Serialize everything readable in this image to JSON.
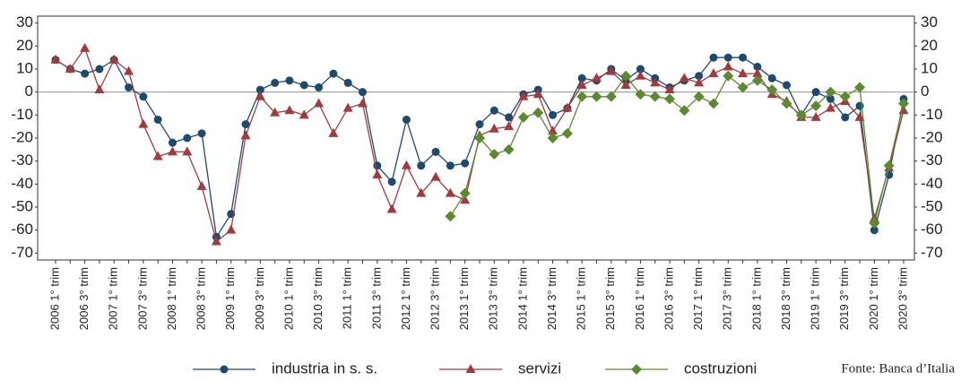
{
  "chart_data": {
    "type": "line",
    "categories": [
      "2006 1° trim",
      null,
      "2006 3° trim",
      null,
      "2007 1° trim",
      null,
      "2007 3° trim",
      null,
      "2008 1° trim",
      null,
      "2008 3° trim",
      null,
      "2009 1° trim",
      null,
      "2009 3° trim",
      null,
      "2010 1° trim",
      null,
      "2010 3° trim",
      null,
      "2011 1° trim",
      null,
      "2011 3° trim",
      null,
      "2012 1° trim",
      null,
      "2012 3° trim",
      null,
      "2013 1° trim",
      null,
      "2013 3° trim",
      null,
      "2014 1° trim",
      null,
      "2014 3° trim",
      null,
      "2015 1° trim",
      null,
      "2015 3° trim",
      null,
      "2016 1° trim",
      null,
      "2016 3° trim",
      null,
      "2017 1° trim",
      null,
      "2017 3° trim",
      null,
      "2018 1° trim",
      null,
      "2018 3° trim",
      null,
      "2019 1° trim",
      null,
      "2019 3° trim",
      null,
      "2020 1° trim",
      null,
      "2020 3° trim"
    ],
    "series": [
      {
        "name": "industria in s. s.",
        "color": "#1d4a70",
        "marker": "circle",
        "values": [
          14,
          10,
          8,
          10,
          14,
          2,
          -2,
          -12,
          -22,
          -20,
          -18,
          -63,
          -53,
          -14,
          1,
          4,
          5,
          3,
          2,
          8,
          4,
          0,
          -32,
          -39,
          -12,
          -32,
          -26,
          -32,
          -31,
          -14,
          -8,
          -11,
          -1,
          1,
          -10,
          -7,
          6,
          5,
          10,
          5,
          10,
          6,
          2,
          5,
          7,
          15,
          15,
          15,
          11,
          6,
          3,
          -10,
          0,
          -3,
          -11,
          -6,
          -60,
          -36,
          -3
        ]
      },
      {
        "name": "servizi",
        "color": "#a33b3e",
        "marker": "triangle",
        "values": [
          14,
          10,
          19,
          1,
          14,
          9,
          -14,
          -28,
          -26,
          -26,
          -41,
          -65,
          -60,
          -19,
          -2,
          -9,
          -8,
          -10,
          -5,
          -18,
          -7,
          -5,
          -36,
          -51,
          -32,
          -44,
          -37,
          -44,
          -47,
          -19,
          -16,
          -15,
          -2,
          -1,
          -17,
          -7,
          3,
          6,
          9,
          3,
          7,
          4,
          1,
          6,
          4,
          8,
          11,
          8,
          8,
          -1,
          -4,
          -11,
          -11,
          -7,
          -4,
          -11,
          -55,
          -33,
          -8
        ]
      },
      {
        "name": "costruzioni",
        "color": "#5b8a2f",
        "marker": "diamond",
        "values": [
          null,
          null,
          null,
          null,
          null,
          null,
          null,
          null,
          null,
          null,
          null,
          null,
          null,
          null,
          null,
          null,
          null,
          null,
          null,
          null,
          null,
          null,
          null,
          null,
          null,
          null,
          null,
          -54,
          -44,
          -20,
          -27,
          -25,
          -11,
          -9,
          -20,
          -18,
          -2,
          -2,
          -2,
          7,
          -1,
          -2,
          -3,
          -8,
          -2,
          -5,
          7,
          2,
          5,
          1,
          -5,
          -10,
          -6,
          0,
          -2,
          2,
          -57,
          -32,
          -5
        ]
      }
    ],
    "ylim": [
      -73,
      33
    ],
    "yticks": [
      -70,
      -60,
      -50,
      -40,
      -30,
      -20,
      -10,
      0,
      10,
      20,
      30
    ],
    "source": "Fonte: Banca d’Italia",
    "legend": "bottom",
    "zero_line": true
  }
}
